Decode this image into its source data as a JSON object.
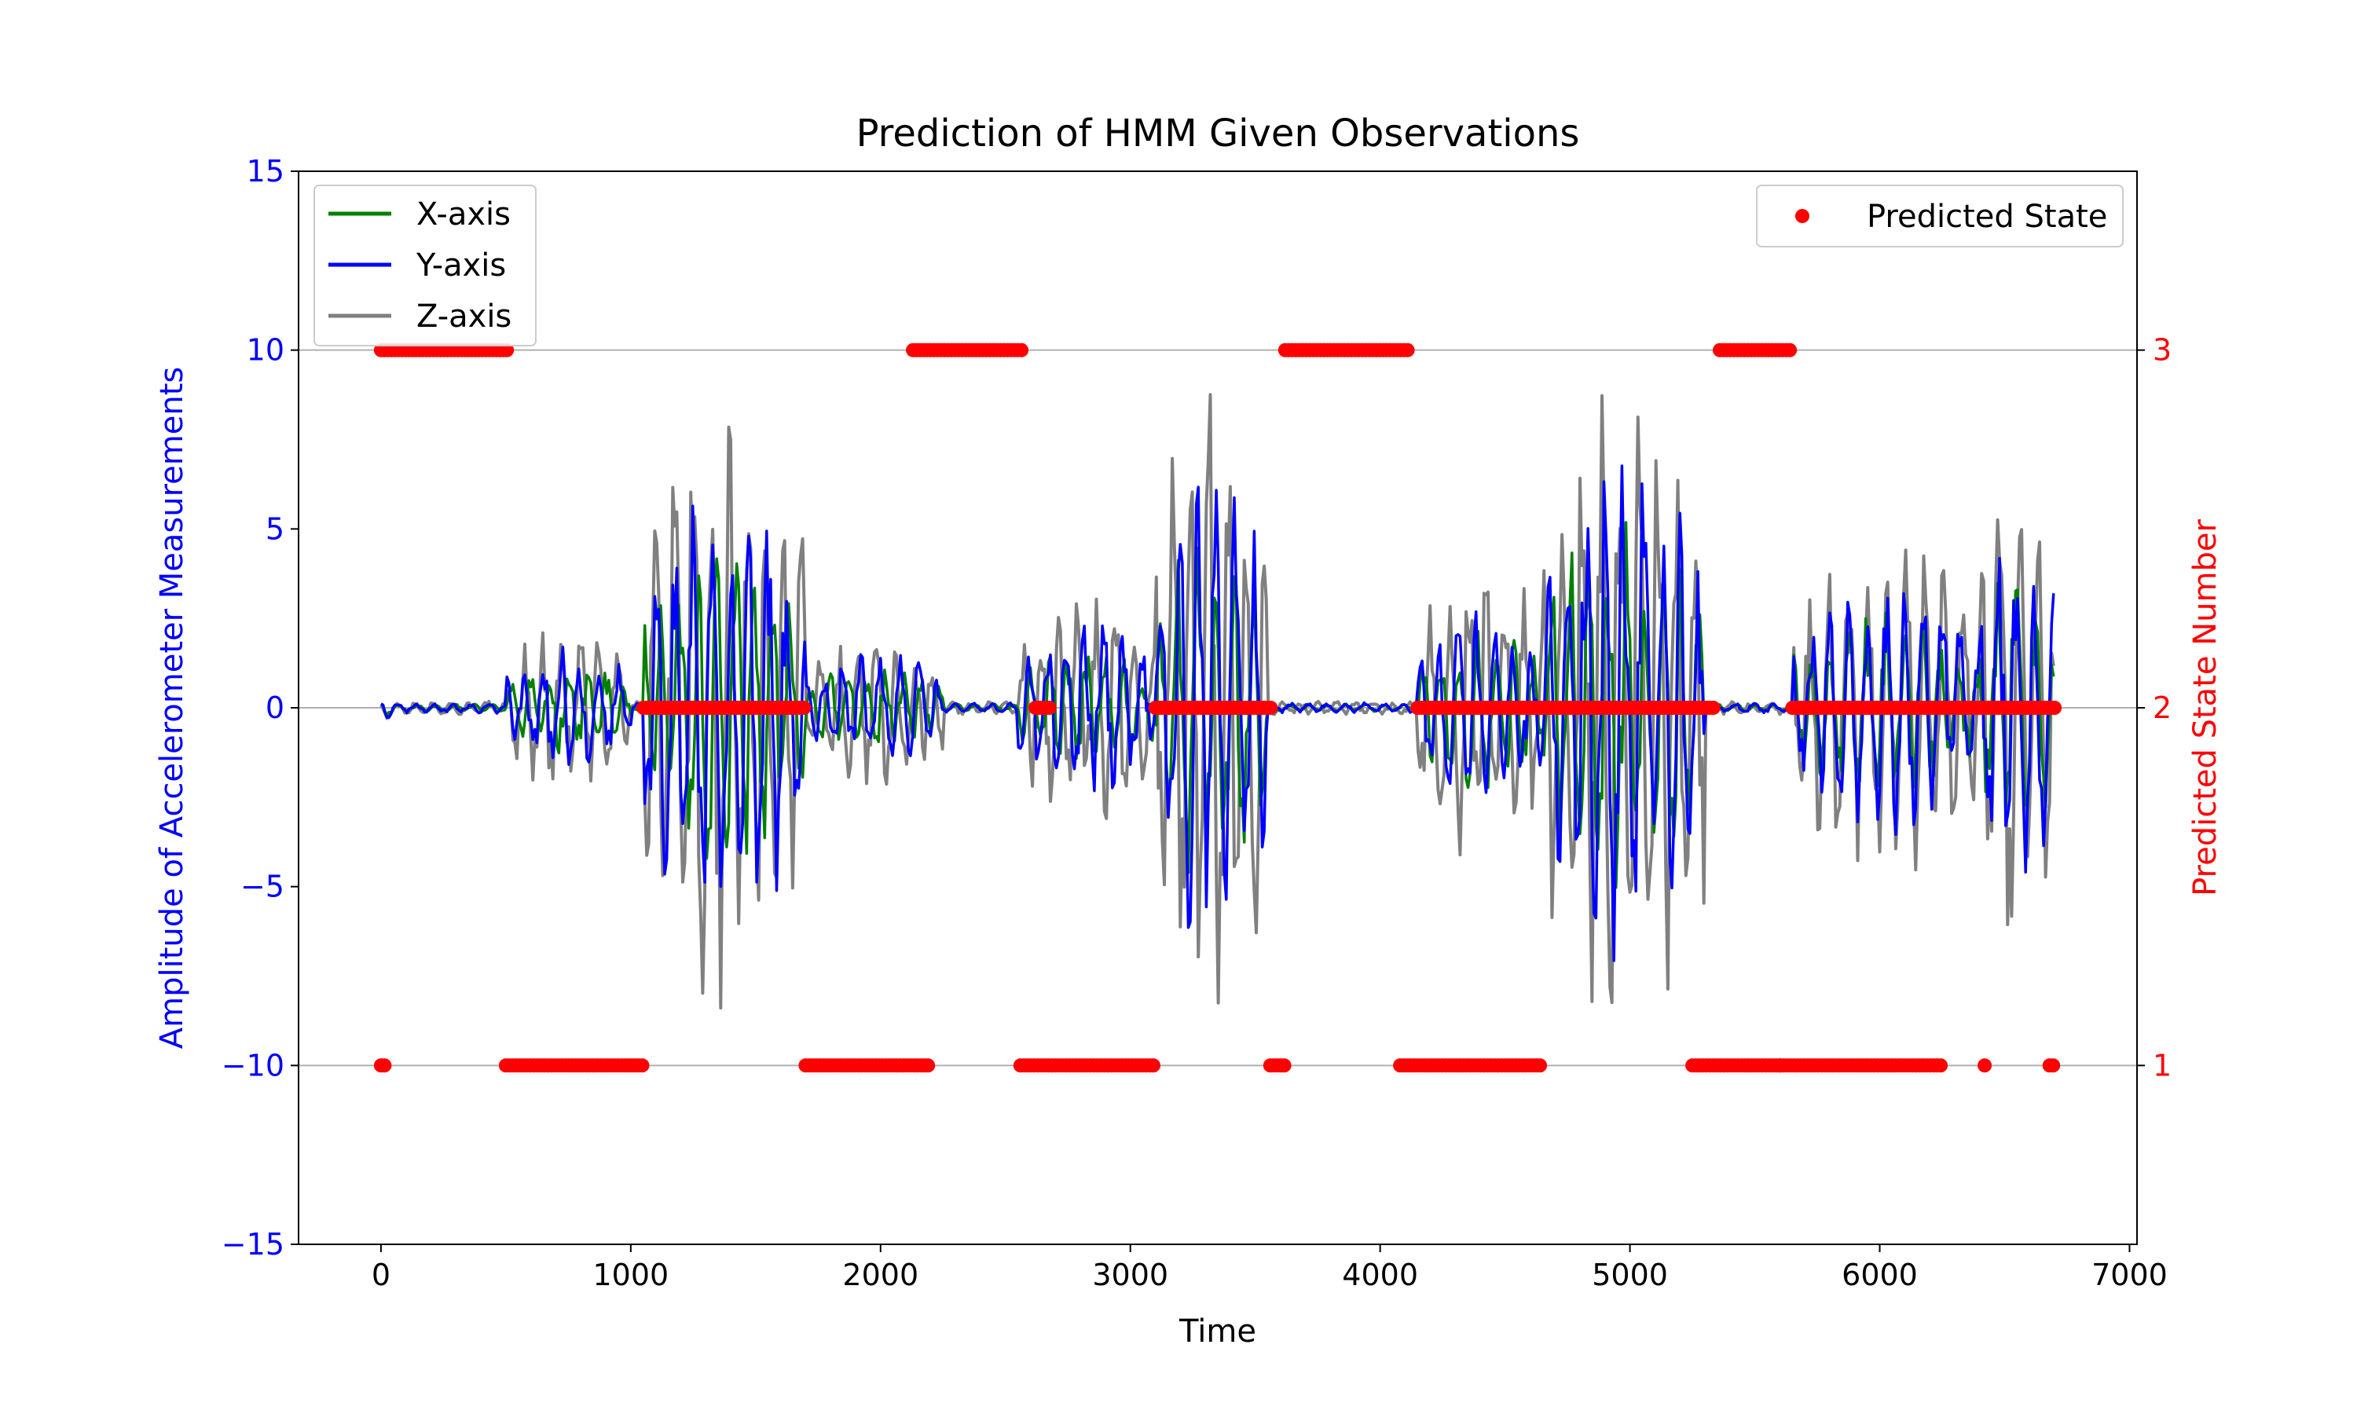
{
  "chart_data": {
    "type": "line",
    "title": "Prediction of HMM Given Observations",
    "xlabel": "Time",
    "ylabel_left": "Amplitude of Accelerometer Measurements",
    "ylabel_right": "Predicted State Number",
    "xlim": [
      -330,
      7030
    ],
    "ylim_left": [
      -15,
      15
    ],
    "ylim_right": [
      0.5,
      3.5
    ],
    "x_ticks": [
      0,
      1000,
      2000,
      3000,
      4000,
      5000,
      6000,
      7000
    ],
    "x_tick_labels": [
      "0",
      "1000",
      "2000",
      "3000",
      "4000",
      "5000",
      "6000",
      "7000"
    ],
    "y_left_ticks": [
      -15,
      -10,
      -5,
      0,
      5,
      10,
      15
    ],
    "y_left_tick_labels": [
      "−15",
      "−10",
      "−5",
      "0",
      "5",
      "10",
      "15"
    ],
    "y_right_ticks": [
      1,
      2,
      3
    ],
    "y_right_tick_labels": [
      "1",
      "2",
      "3"
    ],
    "grid": "horizontal at right-axis ticks 1, 2, 3",
    "legend_left_placement": "upper-left",
    "legend_right_placement": "upper-right",
    "series": [
      {
        "name": "X-axis",
        "color": "#008000",
        "axis": "left",
        "amp": 0.55
      },
      {
        "name": "Y-axis",
        "color": "#0000ff",
        "axis": "left",
        "amp": 0.75
      },
      {
        "name": "Z-axis",
        "color": "#808080",
        "axis": "left",
        "amp": 1.0
      }
    ],
    "activity_segments": [
      {
        "start": 0,
        "end": 60,
        "peak": 0.4
      },
      {
        "start": 500,
        "end": 1000,
        "peak": 2.2
      },
      {
        "start": 1050,
        "end": 1700,
        "peak": 8.0
      },
      {
        "start": 1700,
        "end": 2250,
        "peak": 2.0
      },
      {
        "start": 2550,
        "end": 3100,
        "peak": 3.0
      },
      {
        "start": 3100,
        "end": 3550,
        "peak": 8.5
      },
      {
        "start": 4150,
        "end": 4650,
        "peak": 4.0
      },
      {
        "start": 4650,
        "end": 5300,
        "peak": 9.0
      },
      {
        "start": 5650,
        "end": 6400,
        "peak": 4.5
      },
      {
        "start": 6400,
        "end": 6700,
        "peak": 7.0
      }
    ],
    "predicted_state": {
      "name": "Predicted State",
      "color": "#ff0000",
      "axis": "right",
      "segments": [
        {
          "state": 1,
          "start": 0,
          "end": 15
        },
        {
          "state": 3,
          "start": 0,
          "end": 510
        },
        {
          "state": 1,
          "start": 500,
          "end": 1050
        },
        {
          "state": 2,
          "start": 1050,
          "end": 1700
        },
        {
          "state": 1,
          "start": 1700,
          "end": 2200
        },
        {
          "state": 3,
          "start": 2130,
          "end": 2570
        },
        {
          "state": 1,
          "start": 2560,
          "end": 3100
        },
        {
          "state": 2,
          "start": 2620,
          "end": 2680
        },
        {
          "state": 2,
          "start": 3100,
          "end": 3570
        },
        {
          "state": 1,
          "start": 3560,
          "end": 3620
        },
        {
          "state": 3,
          "start": 3620,
          "end": 4120
        },
        {
          "state": 1,
          "start": 4080,
          "end": 4650
        },
        {
          "state": 2,
          "start": 4150,
          "end": 4620
        },
        {
          "state": 2,
          "start": 4620,
          "end": 5340
        },
        {
          "state": 1,
          "start": 5250,
          "end": 5600
        },
        {
          "state": 3,
          "start": 5360,
          "end": 5650
        },
        {
          "state": 1,
          "start": 5600,
          "end": 6250
        },
        {
          "state": 2,
          "start": 5650,
          "end": 6700
        },
        {
          "state": 1,
          "start": 6420,
          "end": 6430
        },
        {
          "state": 1,
          "start": 6680,
          "end": 6700
        }
      ]
    }
  }
}
